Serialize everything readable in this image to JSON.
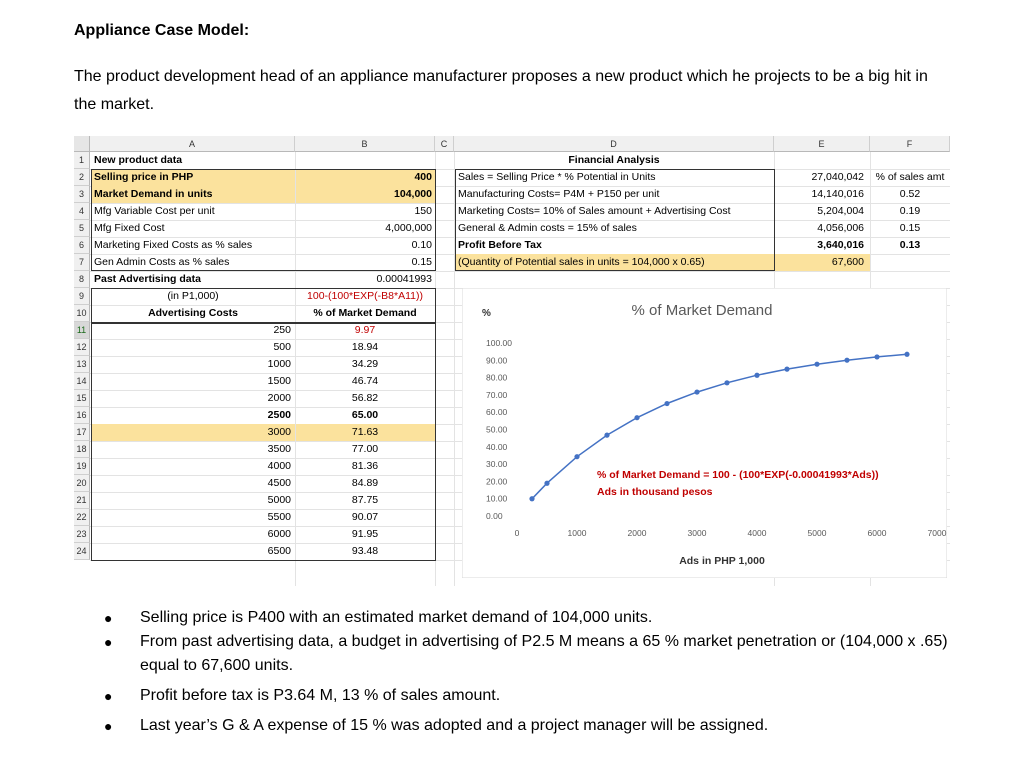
{
  "doc": {
    "title": "Appliance Case Model:",
    "intro": "The product development head of an appliance manufacturer proposes a new product which he projects to be a big hit in the market."
  },
  "sheet": {
    "columns": [
      "A",
      "B",
      "C",
      "D",
      "E",
      "F"
    ],
    "rows": [
      "1",
      "2",
      "3",
      "4",
      "5",
      "6",
      "7",
      "8",
      "9",
      "10",
      "11",
      "12",
      "13",
      "14",
      "15",
      "16",
      "17",
      "18",
      "19",
      "20",
      "21",
      "22",
      "23",
      "24"
    ],
    "a": {
      "r1": "New product data",
      "r2": "Selling price in PHP",
      "r3": "Market Demand in units",
      "r4": "Mfg Variable Cost per unit",
      "r5": "Mfg Fixed Cost",
      "r6": "Marketing Fixed Costs as % sales",
      "r7": "Gen Admin Costs as % sales",
      "r8": "Past Advertising data",
      "r9": "(in P1,000)",
      "r10": "Advertising Costs"
    },
    "b": {
      "r2": "400",
      "r3": "104,000",
      "r4": "150",
      "r5": "4,000,000",
      "r6": "0.10",
      "r7": "0.15",
      "r8": "0.00041993",
      "r9": "100-(100*EXP(-B8*A11))",
      "r10": "% of Market Demand"
    },
    "d": {
      "r1": "Financial Analysis",
      "r2": "Sales = Selling Price * % Potential in Units",
      "r3": "Manufacturing Costs= P4M + P150 per unit",
      "r4": "Marketing Costs= 10% of Sales amount + Advertising Cost",
      "r5": "General & Admin costs = 15% of sales",
      "r6": "Profit Before Tax",
      "r7": "(Quantity of Potential sales in units = 104,000 x 0.65)"
    },
    "e": {
      "r2": "27,040,042",
      "r3": "14,140,016",
      "r4": "5,204,004",
      "r5": "4,056,006",
      "r6": "3,640,016",
      "r7": "67,600"
    },
    "f": {
      "r2": "% of sales amt",
      "r3": "0.52",
      "r4": "0.19",
      "r5": "0.15",
      "r6": "0.13"
    },
    "ads": [
      "250",
      "500",
      "1000",
      "1500",
      "2000",
      "2500",
      "3000",
      "3500",
      "4000",
      "4500",
      "5000",
      "5500",
      "6000",
      "6500"
    ],
    "pct": [
      "9.97",
      "18.94",
      "34.29",
      "46.74",
      "56.82",
      "65.00",
      "71.63",
      "77.00",
      "81.36",
      "84.89",
      "87.75",
      "90.07",
      "91.95",
      "93.48"
    ]
  },
  "chart_data": {
    "type": "scatter",
    "title": "% of Market Demand",
    "ylabel": "%",
    "xlabel": "Ads in PHP 1,000",
    "x": [
      250,
      500,
      1000,
      1500,
      2000,
      2500,
      3000,
      3500,
      4000,
      4500,
      5000,
      5500,
      6000,
      6500
    ],
    "y": [
      9.97,
      18.94,
      34.29,
      46.74,
      56.82,
      65.0,
      71.63,
      77.0,
      81.36,
      84.89,
      87.75,
      90.07,
      91.95,
      93.48
    ],
    "xlim": [
      0,
      7000
    ],
    "ylim": [
      0,
      100
    ],
    "xticks": [
      "0",
      "1000",
      "2000",
      "3000",
      "4000",
      "5000",
      "6000",
      "7000"
    ],
    "yticks": [
      "0.00",
      "10.00",
      "20.00",
      "30.00",
      "40.00",
      "50.00",
      "60.00",
      "70.00",
      "80.00",
      "90.00",
      "100.00"
    ],
    "annotation_line1": "% of Market Demand = 100 - (100*EXP(-0.00041993*Ads))",
    "annotation_line2": "Ads in thousand pesos",
    "grid": false,
    "colors": {
      "series": "#4472c4",
      "annotation": "#c00000"
    }
  },
  "bullets": [
    "Selling price is P400 with an estimated market demand of 104,000 units.",
    "From past advertising data, a budget in advertising of P2.5 M means a 65 % market penetration or (104,000 x .65) equal to 67,600 units.",
    "Profit before tax is P3.64 M, 13 % of sales amount.",
    "Last year’s G & A expense of 15 % was adopted and a project manager will be assigned."
  ],
  "colors": {
    "highlight": "#fbe29d"
  }
}
